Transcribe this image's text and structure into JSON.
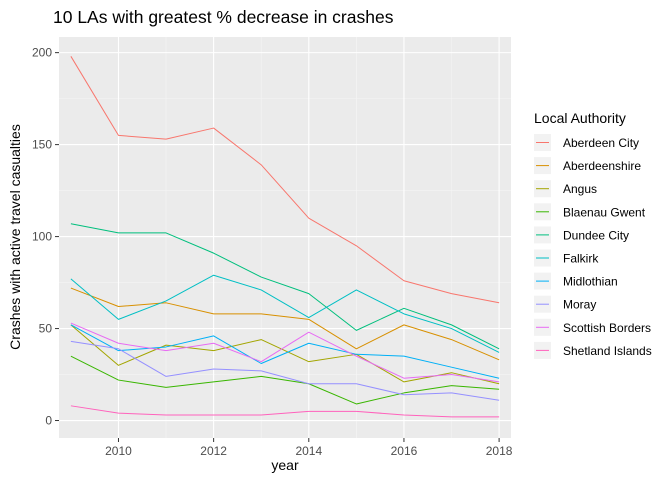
{
  "chart_data": {
    "type": "line",
    "title": "10 LAs with greatest % decrease in crashes",
    "xlabel": "year",
    "ylabel": "Crashes with active travel casualties",
    "xlim": [
      2008.75,
      2018.25
    ],
    "ylim": [
      -9.5,
      208.5
    ],
    "x_ticks": [
      2010,
      2012,
      2014,
      2016,
      2018
    ],
    "y_ticks": [
      0,
      50,
      100,
      150,
      200
    ],
    "grid": true,
    "legend_title": "Local Authority",
    "legend_position": "right",
    "x": [
      2009,
      2010,
      2011,
      2012,
      2013,
      2014,
      2015,
      2016,
      2017,
      2018
    ],
    "series": [
      {
        "name": "Aberdeen City",
        "color": "#F8766D",
        "values": [
          198,
          155,
          153,
          159,
          139,
          110,
          95,
          76,
          69,
          64
        ]
      },
      {
        "name": "Aberdeenshire",
        "color": "#D89000",
        "values": [
          72,
          62,
          64,
          58,
          58,
          55,
          39,
          52,
          44,
          33
        ]
      },
      {
        "name": "Angus",
        "color": "#A3A500",
        "values": [
          52,
          30,
          41,
          38,
          44,
          32,
          36,
          21,
          26,
          20
        ]
      },
      {
        "name": "Blaenau Gwent",
        "color": "#39B600",
        "values": [
          35,
          22,
          18,
          21,
          24,
          20,
          9,
          15,
          19,
          17
        ]
      },
      {
        "name": "Dundee City",
        "color": "#00BF7D",
        "values": [
          107,
          102,
          102,
          91,
          78,
          69,
          49,
          61,
          52,
          39
        ]
      },
      {
        "name": "Falkirk",
        "color": "#00BFC4",
        "values": [
          77,
          55,
          65,
          79,
          71,
          56,
          71,
          58,
          50,
          37
        ]
      },
      {
        "name": "Midlothian",
        "color": "#00B0F6",
        "values": [
          52,
          38,
          40,
          46,
          31,
          42,
          36,
          35,
          29,
          23
        ]
      },
      {
        "name": "Moray",
        "color": "#9590FF",
        "values": [
          43,
          39,
          24,
          28,
          27,
          20,
          20,
          14,
          15,
          11
        ]
      },
      {
        "name": "Scottish Borders",
        "color": "#E76BF3",
        "values": [
          53,
          42,
          38,
          42,
          32,
          48,
          35,
          23,
          25,
          21
        ]
      },
      {
        "name": "Shetland Islands",
        "color": "#FF62BC",
        "values": [
          8,
          4,
          3,
          3,
          3,
          5,
          5,
          3,
          2,
          2
        ]
      }
    ]
  }
}
